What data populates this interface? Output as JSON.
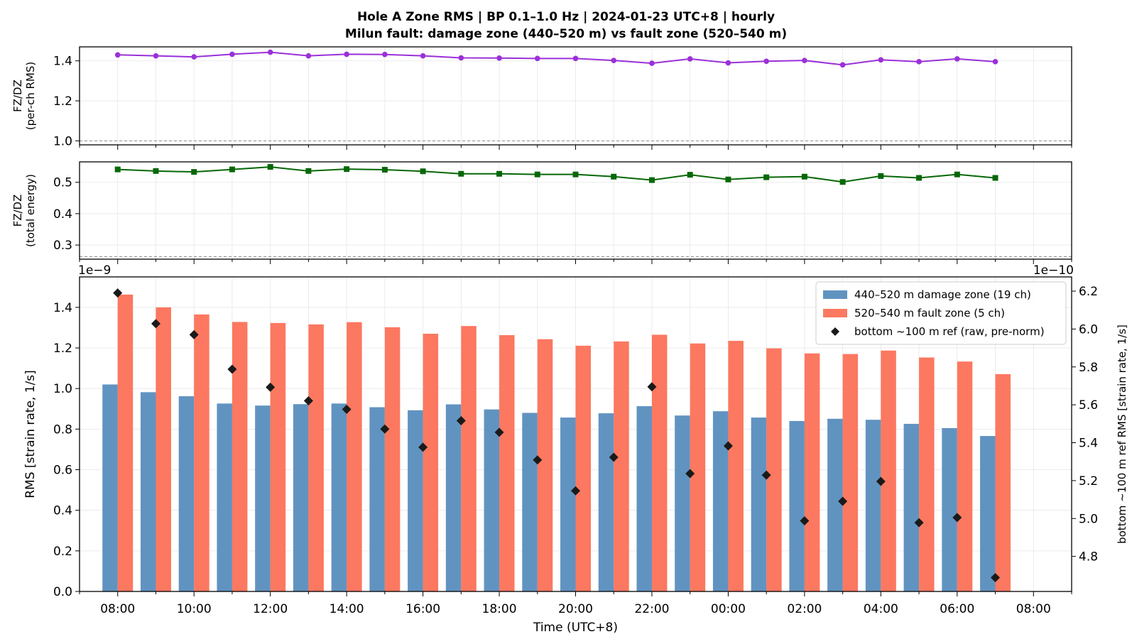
{
  "title_line1": "Hole A Zone RMS  |  BP 0.1–1.0 Hz  |  2024-01-23 UTC+8  |  hourly",
  "title_line2": "Milun fault: damage zone (440–520 m) vs fault zone (520–540 m)",
  "colors": {
    "damage": "#6193c1",
    "fault": "#fc7860",
    "ref": "#1a1a1a",
    "ratio1": "#9b30d9",
    "ratio2": "#076707",
    "grid": "#e6e6e6",
    "refline": "#8c8c8c"
  },
  "chart_data": [
    {
      "type": "line",
      "ylabel": "FZ/DZ\n(per-ch RMS)",
      "ylim": [
        0.98,
        1.47
      ],
      "yticks": [
        1.0,
        1.2,
        1.4
      ],
      "reference_line": 1.0,
      "grid": true,
      "x": [
        "08:00",
        "09:00",
        "10:00",
        "11:00",
        "12:00",
        "13:00",
        "14:00",
        "15:00",
        "16:00",
        "17:00",
        "18:00",
        "19:00",
        "20:00",
        "21:00",
        "22:00",
        "23:00",
        "00:00",
        "01:00",
        "02:00",
        "03:00",
        "04:00",
        "05:00",
        "06:00",
        "07:00"
      ],
      "series": [
        {
          "values": [
            1.43,
            1.425,
            1.42,
            1.433,
            1.443,
            1.425,
            1.433,
            1.432,
            1.425,
            1.415,
            1.414,
            1.412,
            1.412,
            1.402,
            1.388,
            1.41,
            1.39,
            1.398,
            1.402,
            1.38,
            1.405,
            1.396,
            1.41,
            1.396
          ]
        }
      ]
    },
    {
      "type": "line",
      "ylabel": "FZ/DZ\n(total energy)",
      "ylim": [
        0.255,
        0.565
      ],
      "yticks": [
        0.3,
        0.4,
        0.5
      ],
      "reference_line": 0.263,
      "grid": true,
      "x": [
        "08:00",
        "09:00",
        "10:00",
        "11:00",
        "12:00",
        "13:00",
        "14:00",
        "15:00",
        "16:00",
        "17:00",
        "18:00",
        "19:00",
        "20:00",
        "21:00",
        "22:00",
        "23:00",
        "00:00",
        "01:00",
        "02:00",
        "03:00",
        "04:00",
        "05:00",
        "06:00",
        "07:00"
      ],
      "series": [
        {
          "values": [
            0.541,
            0.536,
            0.533,
            0.541,
            0.549,
            0.536,
            0.542,
            0.54,
            0.535,
            0.527,
            0.527,
            0.525,
            0.525,
            0.518,
            0.507,
            0.524,
            0.509,
            0.516,
            0.518,
            0.501,
            0.52,
            0.514,
            0.525,
            0.514
          ]
        }
      ]
    },
    {
      "type": "bar",
      "xlabel": "Time (UTC+8)",
      "ylabel": "RMS  [strain rate, 1/s]",
      "y_offset_text": "1e−9",
      "ylim": [
        0,
        1.55
      ],
      "yticks": [
        0.0,
        0.2,
        0.4,
        0.6,
        0.8,
        1.0,
        1.2,
        1.4
      ],
      "y2label": "bottom ~100 m ref RMS  [strain rate, 1/s]",
      "y2_offset_text": "1e−10",
      "y2lim": [
        4.615,
        6.275
      ],
      "y2ticks": [
        4.8,
        5.0,
        5.2,
        5.4,
        5.6,
        5.8,
        6.0,
        6.2
      ],
      "xticks": [
        "08:00",
        "10:00",
        "12:00",
        "14:00",
        "16:00",
        "18:00",
        "20:00",
        "22:00",
        "00:00",
        "02:00",
        "04:00",
        "06:00",
        "08:00"
      ],
      "legend_position": "top-right",
      "grid": true,
      "x": [
        "08:00",
        "09:00",
        "10:00",
        "11:00",
        "12:00",
        "13:00",
        "14:00",
        "15:00",
        "16:00",
        "17:00",
        "18:00",
        "19:00",
        "20:00",
        "21:00",
        "22:00",
        "23:00",
        "00:00",
        "01:00",
        "02:00",
        "03:00",
        "04:00",
        "05:00",
        "06:00",
        "07:00"
      ],
      "series": [
        {
          "name": "440–520 m  damage zone (19 ch)",
          "type": "bar",
          "values": [
            1.02,
            0.982,
            0.962,
            0.926,
            0.916,
            0.923,
            0.926,
            0.908,
            0.893,
            0.922,
            0.897,
            0.88,
            0.857,
            0.878,
            0.913,
            0.867,
            0.888,
            0.857,
            0.84,
            0.851,
            0.846,
            0.826,
            0.805,
            0.766
          ]
        },
        {
          "name": "520–540 m  fault zone (5 ch)",
          "type": "bar",
          "values": [
            1.463,
            1.4,
            1.365,
            1.328,
            1.323,
            1.316,
            1.327,
            1.302,
            1.27,
            1.308,
            1.263,
            1.243,
            1.211,
            1.232,
            1.265,
            1.222,
            1.235,
            1.198,
            1.173,
            1.17,
            1.187,
            1.153,
            1.133,
            1.071
          ]
        },
        {
          "name": "bottom ~100 m ref (raw, pre-norm)",
          "type": "scatter",
          "axis": "right",
          "values": [
            6.19,
            6.028,
            5.97,
            5.788,
            5.693,
            5.621,
            5.576,
            5.472,
            5.376,
            5.516,
            5.455,
            5.309,
            5.146,
            5.323,
            5.695,
            5.237,
            5.383,
            5.229,
            4.988,
            5.091,
            5.196,
            4.978,
            5.005,
            4.688
          ]
        }
      ]
    }
  ]
}
